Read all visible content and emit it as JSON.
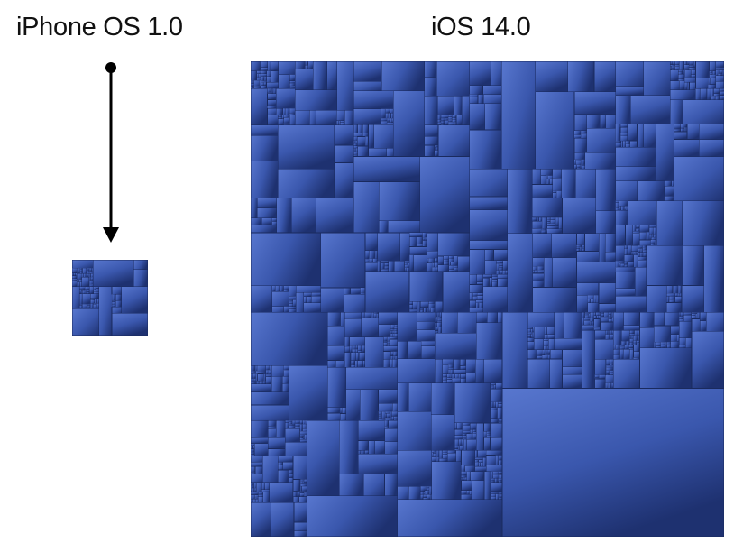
{
  "labels": {
    "left": "iPhone OS 1.0",
    "right": "iOS 14.0"
  },
  "colors": {
    "background": "#ffffff",
    "tile_light": "#5877cf",
    "tile_mid": "#3a57ad",
    "tile_dark": "#1e3170",
    "tile_border": "#1a2a5e",
    "arrow": "#000000"
  },
  "icons": {
    "arrow": "down-arrow-with-dot"
  }
}
